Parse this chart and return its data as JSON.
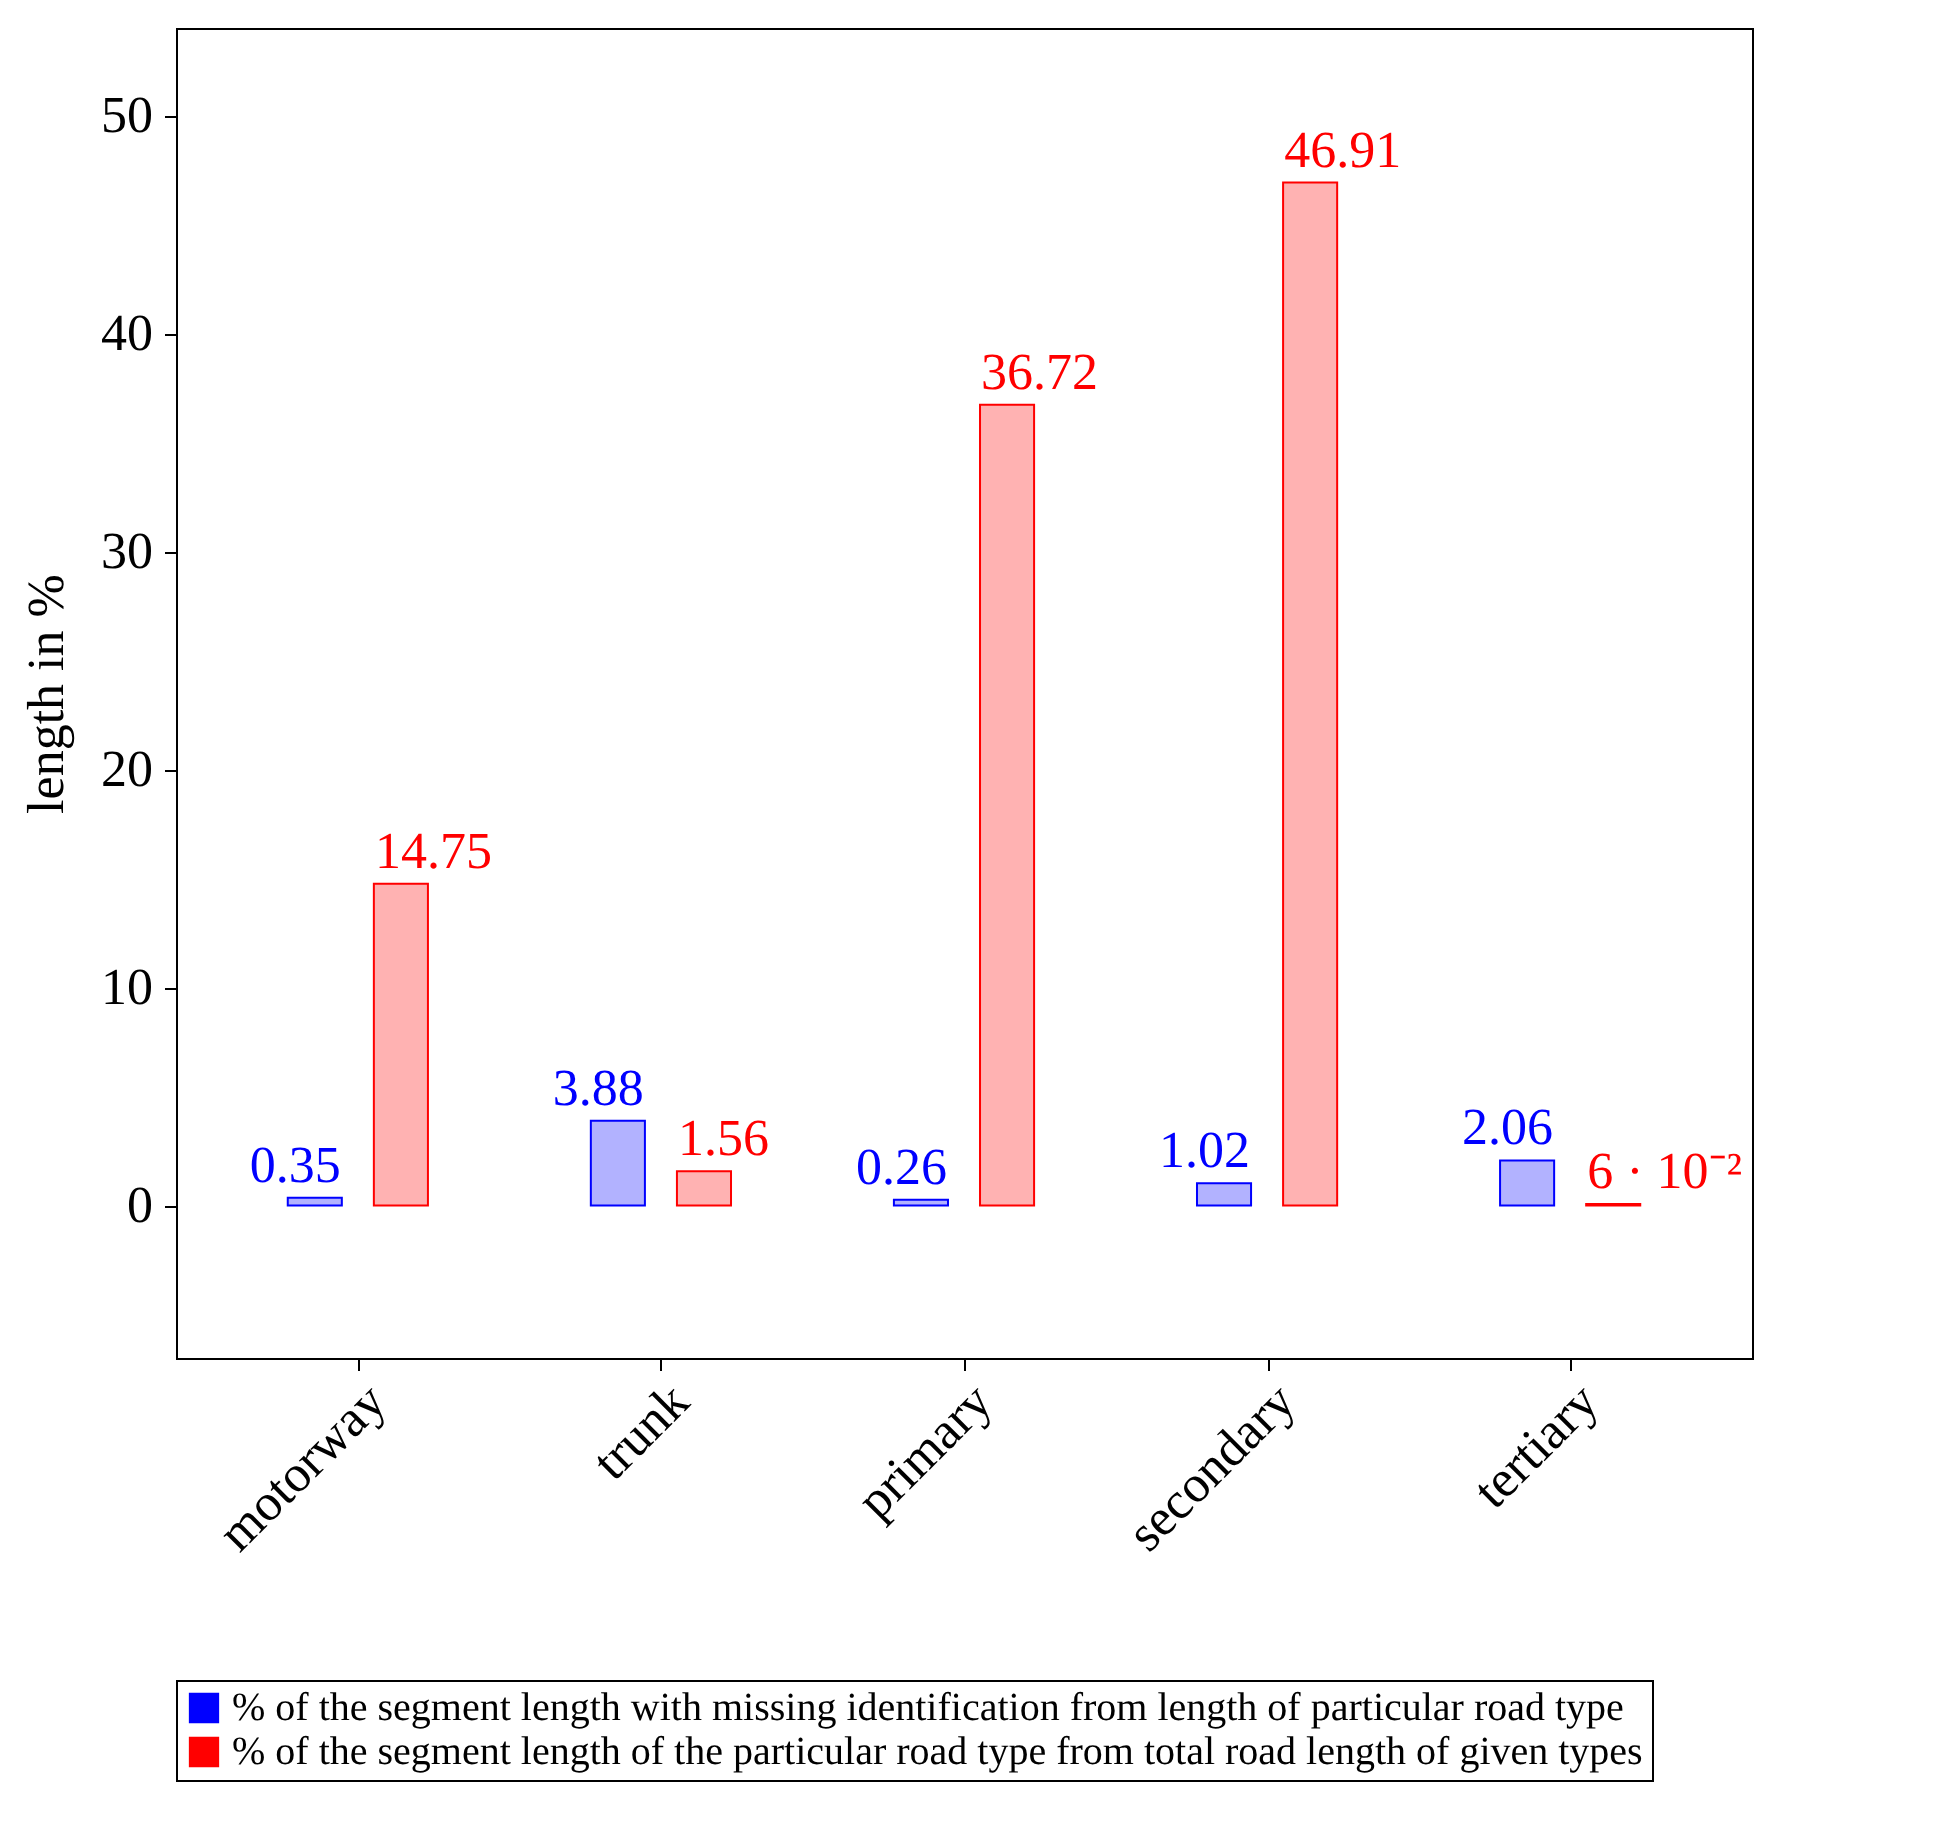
{
  "chart_data": {
    "type": "bar",
    "ylabel": "length in %",
    "categories": [
      "motorway",
      "trunk",
      "primary",
      "secondary",
      "tertiary"
    ],
    "series": [
      {
        "name": "% of the segment length with missing identification from length of particular road type",
        "color": "#0000ff",
        "values": [
          0.35,
          3.88,
          0.26,
          1.02,
          2.06
        ],
        "value_labels": [
          "0.35",
          "3.88",
          "0.26",
          "1.02",
          "2.06"
        ]
      },
      {
        "name": "% of the segment length of the particular road type from total road length of given types",
        "color": "#ff0000",
        "values": [
          14.75,
          1.56,
          36.72,
          46.91,
          0.06
        ],
        "value_labels": [
          "14.75",
          "1.56",
          "36.72",
          "46.91",
          "6 · 10⁻²"
        ]
      }
    ],
    "ylim": [
      -7,
      54
    ],
    "yticks": [
      0,
      10,
      20,
      30,
      40,
      50
    ],
    "grid": false,
    "legend": "bottom"
  }
}
